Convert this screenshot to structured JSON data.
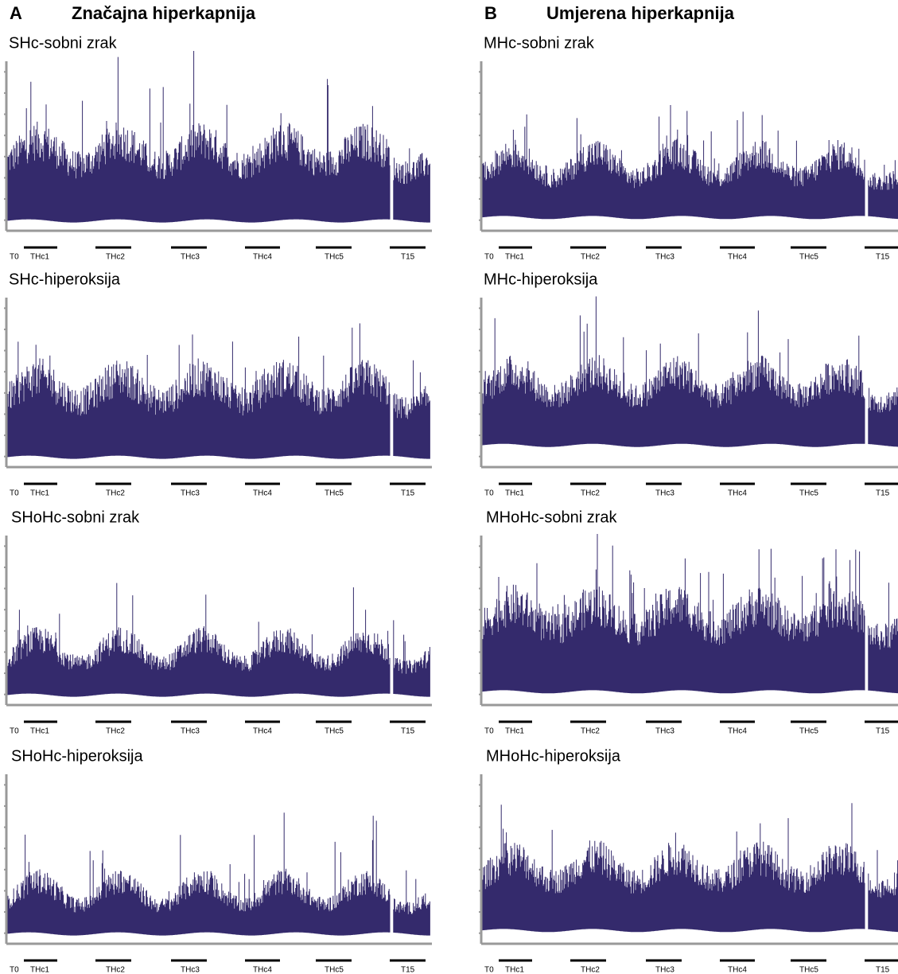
{
  "headers": [
    {
      "letter": "A",
      "title": "Značajna hiperkapnija"
    },
    {
      "letter": "B",
      "title": "Umjerena hiperkapnija"
    }
  ],
  "panels": [
    {
      "title": "SHc-sobni zrak"
    },
    {
      "title": "SHc-hiperoksija"
    },
    {
      "title": "SHoHc-sobni zrak"
    },
    {
      "title": "SHoHc-hiperoksija"
    },
    {
      "title": "MHc-sobni zrak"
    },
    {
      "title": "MHc-hiperoksija"
    },
    {
      "title": "MHoHc-sobni zrak"
    },
    {
      "title": "MHoHc-hiperoksija"
    }
  ],
  "timeline": [
    "T0",
    "THc1",
    "THc2",
    "THc3",
    "THc4",
    "THc5",
    "T15"
  ]
}
